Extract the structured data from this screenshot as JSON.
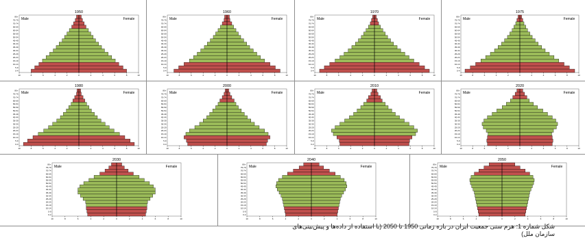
{
  "chart_data": {
    "type": "bar",
    "male_label": "Male",
    "female_label": "Female",
    "age_groups_top_first": [
      "80+",
      "75-79",
      "70-74",
      "65-69",
      "60-64",
      "55-59",
      "50-54",
      "45-49",
      "40-44",
      "35-39",
      "30-34",
      "25-29",
      "20-24",
      "15-19",
      "10-14",
      "5-9",
      "0-4"
    ],
    "x_ticks": [
      "10",
      "8",
      "6",
      "4",
      "2",
      "0",
      "2",
      "4",
      "6",
      "8",
      "10"
    ],
    "xlim_percent": [
      -10,
      10
    ],
    "colors": {
      "red_band": "#c0504d",
      "green_band": "#9bbb59",
      "outline": "#000000"
    },
    "pyramids": [
      {
        "year": "1950",
        "values": [
          0.4,
          0.6,
          0.9,
          1.2,
          1.6,
          2.0,
          2.4,
          2.8,
          3.3,
          3.8,
          4.3,
          4.9,
          5.5,
          6.1,
          6.7,
          7.4,
          8.0
        ],
        "red_top_ages": 4,
        "red_bottom_ages": 3
      },
      {
        "year": "1960",
        "values": [
          0.4,
          0.5,
          0.8,
          1.1,
          1.5,
          1.9,
          2.3,
          2.8,
          3.3,
          3.8,
          4.4,
          5.0,
          5.6,
          6.3,
          7.2,
          8.1,
          8.9
        ],
        "red_top_ages": 3,
        "red_bottom_ages": 3
      },
      {
        "year": "1970",
        "values": [
          0.3,
          0.5,
          0.7,
          1.0,
          1.4,
          1.8,
          2.2,
          2.7,
          3.2,
          3.8,
          4.4,
          5.1,
          5.8,
          6.6,
          7.5,
          8.4,
          9.2
        ],
        "red_top_ages": 3,
        "red_bottom_ages": 3
      },
      {
        "year": "1975",
        "values": [
          0.3,
          0.5,
          0.7,
          1.0,
          1.3,
          1.7,
          2.1,
          2.6,
          3.1,
          3.7,
          4.3,
          5.0,
          5.8,
          6.6,
          7.5,
          8.4,
          9.3
        ],
        "red_top_ages": 2,
        "red_bottom_ages": 3
      },
      {
        "year": "1980",
        "values": [
          0.3,
          0.4,
          0.7,
          1.0,
          1.3,
          1.7,
          2.1,
          2.6,
          3.1,
          3.7,
          4.4,
          5.1,
          5.9,
          6.8,
          7.7,
          8.6,
          9.3
        ],
        "red_top_ages": 4,
        "red_bottom_ages": 3
      },
      {
        "year": "2000",
        "values": [
          0.3,
          0.5,
          0.8,
          1.2,
          1.5,
          1.9,
          2.4,
          2.9,
          3.4,
          4.0,
          4.6,
          5.4,
          6.3,
          6.9,
          7.2,
          6.8,
          6.6
        ],
        "red_top_ages": 4,
        "red_bottom_ages": 3
      },
      {
        "year": "2010",
        "values": [
          0.4,
          0.6,
          1.0,
          1.3,
          1.8,
          2.3,
          2.9,
          3.5,
          4.2,
          5.0,
          5.8,
          6.6,
          7.2,
          6.9,
          6.3,
          5.9,
          5.8
        ],
        "red_top_ages": 4,
        "red_bottom_ages": 3
      },
      {
        "year": "2020",
        "values": [
          0.5,
          0.8,
          1.2,
          1.6,
          2.3,
          3.0,
          3.9,
          4.7,
          5.5,
          6.1,
          6.4,
          6.2,
          5.7,
          5.4,
          5.5,
          5.6,
          5.5
        ],
        "red_top_ages": 3,
        "red_bottom_ages": 3
      },
      {
        "year": "2030",
        "values": [
          0.8,
          1.2,
          1.8,
          2.6,
          3.5,
          4.3,
          5.1,
          5.7,
          6.0,
          6.0,
          5.6,
          5.2,
          4.8,
          4.7,
          4.7,
          4.6,
          4.5
        ],
        "red_top_ages": 4,
        "red_bottom_ages": 3
      },
      {
        "year": "2040",
        "values": [
          1.2,
          1.9,
          2.8,
          3.7,
          4.5,
          5.1,
          5.4,
          5.5,
          5.3,
          5.0,
          4.7,
          4.5,
          4.4,
          4.3,
          4.2,
          4.1,
          4.0
        ],
        "red_top_ages": 4,
        "red_bottom_ages": 3
      },
      {
        "year": "2050",
        "values": [
          2.0,
          2.8,
          3.6,
          4.3,
          4.8,
          5.0,
          4.9,
          4.7,
          4.5,
          4.3,
          4.2,
          4.1,
          4.0,
          3.9,
          3.8,
          3.7,
          3.6
        ],
        "red_top_ages": 4,
        "red_bottom_ages": 3
      }
    ]
  },
  "caption": {
    "line1": "شکل شماره 1: هرم سنی جمعیت ایران در بازه زمانی 1950 تا 2050 (با استفاده از داده‌ها و پیش‌بینی‌های",
    "line2": "سازمان ملل)"
  }
}
